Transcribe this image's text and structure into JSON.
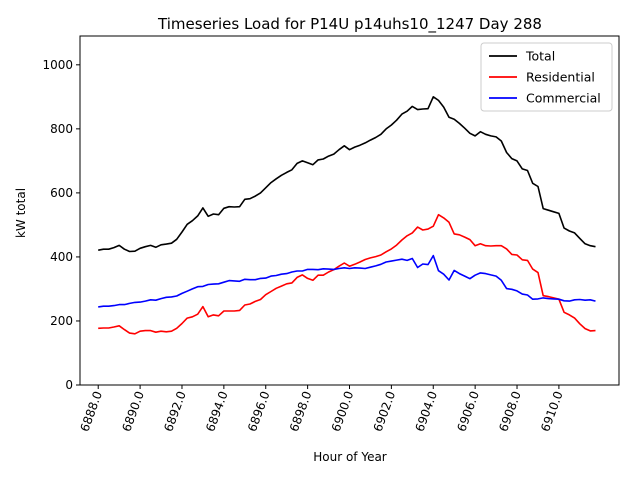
{
  "chart_data": {
    "type": "line",
    "title": "Timeseries Load for P14U p14uhs10_1247  Day 288",
    "xlabel": "Hour of Year",
    "ylabel": "kW total",
    "xlim": [
      6887.13,
      6912.87
    ],
    "ylim": [
      0,
      1090
    ],
    "xticks": [
      6888,
      6890,
      6892,
      6894,
      6896,
      6898,
      6900,
      6902,
      6904,
      6906,
      6908,
      6910
    ],
    "xtick_labels": [
      "6888.0",
      "6890.0",
      "6892.0",
      "6894.0",
      "6896.0",
      "6898.0",
      "6900.0",
      "6902.0",
      "6904.0",
      "6906.0",
      "6908.0",
      "6910.0"
    ],
    "yticks": [
      0,
      200,
      400,
      600,
      800,
      1000
    ],
    "ytick_labels": [
      "0",
      "200",
      "400",
      "600",
      "800",
      "1000"
    ],
    "legend_position": "top-right",
    "x": [
      6888.0,
      6888.25,
      6888.5,
      6888.75,
      6889.0,
      6889.25,
      6889.5,
      6889.75,
      6890.0,
      6890.25,
      6890.5,
      6890.75,
      6891.0,
      6891.25,
      6891.5,
      6891.75,
      6892.0,
      6892.25,
      6892.5,
      6892.75,
      6893.0,
      6893.25,
      6893.5,
      6893.75,
      6894.0,
      6894.25,
      6894.5,
      6894.75,
      6895.0,
      6895.25,
      6895.5,
      6895.75,
      6896.0,
      6896.25,
      6896.5,
      6896.75,
      6897.0,
      6897.25,
      6897.5,
      6897.75,
      6898.0,
      6898.25,
      6898.5,
      6898.75,
      6899.0,
      6899.25,
      6899.5,
      6899.75,
      6900.0,
      6900.25,
      6900.5,
      6900.75,
      6901.0,
      6901.25,
      6901.5,
      6901.75,
      6902.0,
      6902.25,
      6902.5,
      6902.75,
      6903.0,
      6903.25,
      6903.5,
      6903.75,
      6904.0,
      6904.25,
      6904.5,
      6904.75,
      6905.0,
      6905.25,
      6905.5,
      6905.75,
      6906.0,
      6906.25,
      6906.5,
      6906.75,
      6907.0,
      6907.25,
      6907.5,
      6907.75,
      6908.0,
      6908.25,
      6908.5,
      6908.75,
      6909.0,
      6909.25,
      6909.5,
      6909.75,
      6910.0,
      6910.25,
      6910.5,
      6910.75,
      6911.0,
      6911.25,
      6911.5,
      6911.75
    ],
    "series": [
      {
        "name": "Total",
        "color": "#000000",
        "values": [
          421,
          424,
          424,
          429,
          436,
          424,
          417,
          418,
          427,
          432,
          436,
          430,
          438,
          440,
          443,
          455,
          478,
          502,
          513,
          528,
          553,
          527,
          534,
          532,
          552,
          557,
          556,
          557,
          580,
          582,
          590,
          600,
          616,
          632,
          644,
          655,
          664,
          672,
          692,
          700,
          694,
          688,
          703,
          706,
          715,
          721,
          735,
          747,
          735,
          743,
          749,
          756,
          765,
          773,
          783,
          800,
          812,
          827,
          846,
          855,
          870,
          860,
          862,
          863,
          900,
          889,
          868,
          836,
          830,
          817,
          802,
          786,
          778,
          791,
          783,
          778,
          775,
          762,
          726,
          707,
          700,
          675,
          670,
          630,
          620,
          551,
          546,
          541,
          536,
          490,
          481,
          475,
          458,
          441,
          435,
          432
        ]
      },
      {
        "name": "Residential",
        "color": "#ff0000",
        "values": [
          177,
          178,
          178,
          181,
          185,
          173,
          162,
          160,
          168,
          170,
          170,
          165,
          168,
          166,
          168,
          177,
          192,
          209,
          213,
          221,
          245,
          213,
          219,
          216,
          231,
          231,
          231,
          233,
          250,
          253,
          261,
          267,
          282,
          292,
          302,
          309,
          316,
          319,
          336,
          344,
          333,
          327,
          343,
          343,
          353,
          360,
          371,
          381,
          371,
          377,
          384,
          392,
          397,
          401,
          406,
          416,
          425,
          437,
          453,
          466,
          475,
          493,
          484,
          487,
          496,
          532,
          522,
          508,
          472,
          469,
          462,
          454,
          435,
          441,
          435,
          434,
          435,
          435,
          425,
          408,
          406,
          391,
          389,
          362,
          351,
          279,
          276,
          272,
          268,
          227,
          219,
          209,
          191,
          176,
          169,
          170
        ]
      },
      {
        "name": "Commercial",
        "color": "#0000ff",
        "values": [
          244,
          246,
          246,
          248,
          251,
          251,
          255,
          258,
          259,
          262,
          266,
          265,
          270,
          274,
          275,
          278,
          286,
          293,
          300,
          307,
          308,
          314,
          315,
          316,
          321,
          326,
          325,
          324,
          330,
          329,
          329,
          333,
          334,
          340,
          342,
          346,
          348,
          353,
          356,
          356,
          361,
          361,
          360,
          363,
          362,
          361,
          364,
          366,
          364,
          366,
          365,
          364,
          368,
          372,
          377,
          384,
          387,
          390,
          393,
          389,
          395,
          367,
          378,
          376,
          404,
          357,
          346,
          328,
          358,
          348,
          340,
          332,
          343,
          350,
          348,
          344,
          340,
          327,
          301,
          299,
          294,
          284,
          281,
          268,
          269,
          272,
          270,
          269,
          268,
          263,
          262,
          266,
          267,
          265,
          266,
          262
        ]
      }
    ]
  }
}
